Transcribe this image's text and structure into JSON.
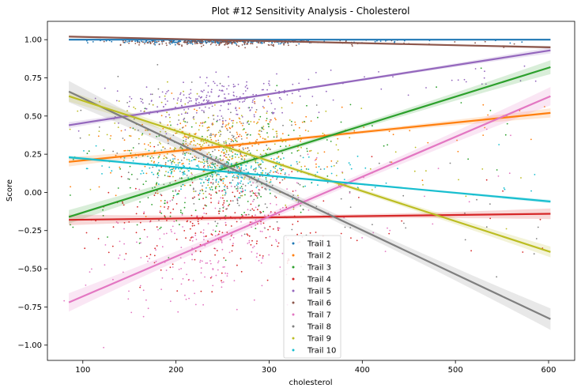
{
  "chart_data": {
    "type": "scatter",
    "title": "Plot #12 Sensitivity Analysis - Cholesterol",
    "xlabel": "cholesterol",
    "ylabel": "Score",
    "xlim": [
      62,
      628
    ],
    "ylim": [
      -1.1,
      1.12
    ],
    "x_ticks": [
      100,
      200,
      300,
      400,
      500,
      600
    ],
    "y_ticks": [
      -1.0,
      -0.75,
      -0.5,
      -0.25,
      0.0,
      0.25,
      0.5,
      0.75,
      1.0
    ],
    "x_tick_labels": [
      "100",
      "200",
      "300",
      "400",
      "500",
      "600"
    ],
    "y_tick_labels": [
      "−1.00",
      "−0.75",
      "−0.50",
      "−0.25",
      "0.00",
      "0.25",
      "0.50",
      "0.75",
      "1.00"
    ],
    "grid": false,
    "legend_position": "bottom-center",
    "series": [
      {
        "name": "Trail 1",
        "color": "#1f77b4",
        "fit": [
          [
            85,
            1.0
          ],
          [
            602,
            1.0
          ]
        ],
        "band": 0.005,
        "cloud_center": 0.995,
        "cloud_spread": 0.01
      },
      {
        "name": "Trail 2",
        "color": "#ff7f0e",
        "fit": [
          [
            85,
            0.2
          ],
          [
            602,
            0.52
          ]
        ],
        "band": 0.03,
        "cloud_center": 0.31,
        "cloud_spread": 0.13
      },
      {
        "name": "Trail 3",
        "color": "#2ca02c",
        "fit": [
          [
            85,
            -0.16
          ],
          [
            602,
            0.82
          ]
        ],
        "band": 0.045,
        "cloud_center": 0.15,
        "cloud_spread": 0.2
      },
      {
        "name": "Trail 4",
        "color": "#d62728",
        "fit": [
          [
            85,
            -0.18
          ],
          [
            602,
            -0.14
          ]
        ],
        "band": 0.035,
        "cloud_center": -0.17,
        "cloud_spread": 0.18
      },
      {
        "name": "Trail 5",
        "color": "#9467bd",
        "fit": [
          [
            85,
            0.44
          ],
          [
            602,
            0.93
          ]
        ],
        "band": 0.02,
        "cloud_center": 0.6,
        "cloud_spread": 0.07
      },
      {
        "name": "Trail 6",
        "color": "#8c564b",
        "fit": [
          [
            85,
            1.02
          ],
          [
            602,
            0.95
          ]
        ],
        "band": 0.008,
        "cloud_center": 1.0,
        "cloud_spread": 0.02
      },
      {
        "name": "Trail 7",
        "color": "#e377c2",
        "fit": [
          [
            85,
            -0.72
          ],
          [
            602,
            0.63
          ]
        ],
        "band": 0.06,
        "cloud_center": -0.3,
        "cloud_spread": 0.22
      },
      {
        "name": "Trail 8",
        "color": "#7f7f7f",
        "fit": [
          [
            85,
            0.66
          ],
          [
            602,
            -0.83
          ]
        ],
        "band": 0.07,
        "cloud_center": 0.2,
        "cloud_spread": 0.2
      },
      {
        "name": "Trail 9",
        "color": "#bcbd22",
        "fit": [
          [
            85,
            0.63
          ],
          [
            602,
            -0.39
          ]
        ],
        "band": 0.035,
        "cloud_center": 0.3,
        "cloud_spread": 0.14
      },
      {
        "name": "Trail 10",
        "color": "#17becf",
        "fit": [
          [
            85,
            0.23
          ],
          [
            602,
            -0.06
          ]
        ],
        "band": 0.012,
        "cloud_center": 0.14,
        "cloud_spread": 0.06
      }
    ]
  }
}
